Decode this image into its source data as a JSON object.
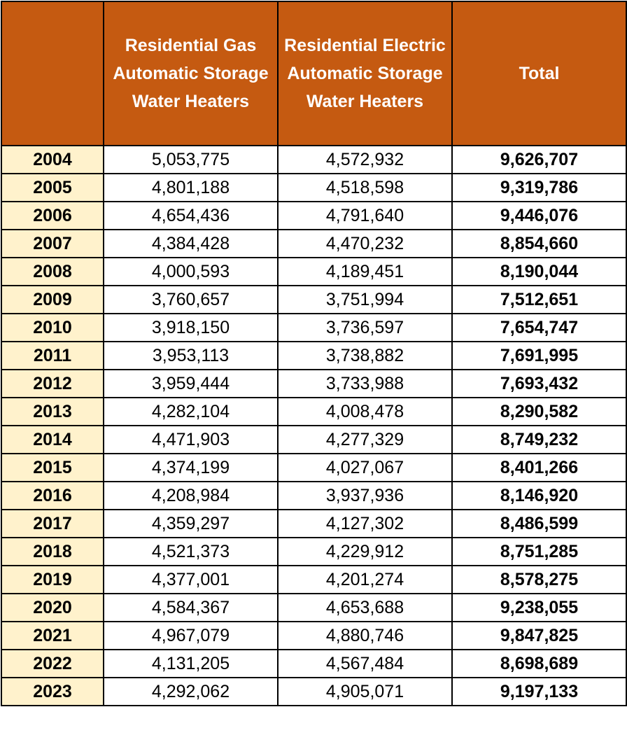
{
  "colors": {
    "header_bg": "#c55a11",
    "header_text": "#ffffff",
    "year_bg": "#fff2cc",
    "border": "#000000"
  },
  "chart_data": {
    "type": "table",
    "columns": [
      "",
      "Residential Gas Automatic Storage Water Heaters",
      "Residential Electric Automatic Storage Water Heaters",
      "Total"
    ],
    "rows": [
      [
        "2004",
        "5,053,775",
        "4,572,932",
        "9,626,707"
      ],
      [
        "2005",
        "4,801,188",
        "4,518,598",
        "9,319,786"
      ],
      [
        "2006",
        "4,654,436",
        "4,791,640",
        "9,446,076"
      ],
      [
        "2007",
        "4,384,428",
        "4,470,232",
        "8,854,660"
      ],
      [
        "2008",
        "4,000,593",
        "4,189,451",
        "8,190,044"
      ],
      [
        "2009",
        "3,760,657",
        "3,751,994",
        "7,512,651"
      ],
      [
        "2010",
        "3,918,150",
        "3,736,597",
        "7,654,747"
      ],
      [
        "2011",
        "3,953,113",
        "3,738,882",
        "7,691,995"
      ],
      [
        "2012",
        "3,959,444",
        "3,733,988",
        "7,693,432"
      ],
      [
        "2013",
        "4,282,104",
        "4,008,478",
        "8,290,582"
      ],
      [
        "2014",
        "4,471,903",
        "4,277,329",
        "8,749,232"
      ],
      [
        "2015",
        "4,374,199",
        "4,027,067",
        "8,401,266"
      ],
      [
        "2016",
        "4,208,984",
        "3,937,936",
        "8,146,920"
      ],
      [
        "2017",
        "4,359,297",
        "4,127,302",
        "8,486,599"
      ],
      [
        "2018",
        "4,521,373",
        "4,229,912",
        "8,751,285"
      ],
      [
        "2019",
        "4,377,001",
        "4,201,274",
        "8,578,275"
      ],
      [
        "2020",
        "4,584,367",
        "4,653,688",
        "9,238,055"
      ],
      [
        "2021",
        "4,967,079",
        "4,880,746",
        "9,847,825"
      ],
      [
        "2022",
        "4,131,205",
        "4,567,484",
        "8,698,689"
      ],
      [
        "2023",
        "4,292,062",
        "4,905,071",
        "9,197,133"
      ]
    ]
  }
}
